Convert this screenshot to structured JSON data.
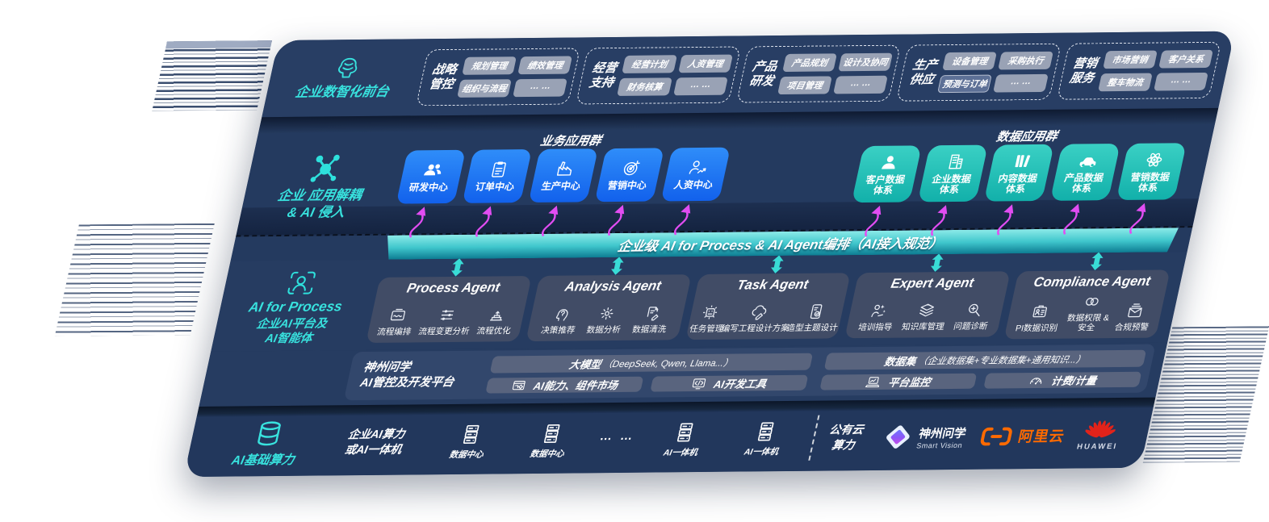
{
  "palette": {
    "page_bg": "#ffffff",
    "panel_navy": "#24395d",
    "teal_accent": "#38e2de",
    "blue_box": "#1e78f0",
    "teal_box": "#22c2b7",
    "agent_box": "#414c66",
    "chip_gray": "#99a2b5",
    "chip_dark": "#5d7096",
    "bar_teal_light": "#8ceae8",
    "bar_teal_dark": "#0d7c92",
    "magenta": "#e14df2",
    "alibaba_orange": "#ff6a00",
    "huawei_red": "#e2231a"
  },
  "front_layer": {
    "label": "企业数智化前台",
    "icon": "brain-icon",
    "groups": [
      {
        "title_lines": [
          "战略",
          "管控"
        ],
        "chips": [
          {
            "label": "规划管理"
          },
          {
            "label": "绩效管理"
          },
          {
            "label": "组织与流程"
          },
          {
            "label": "… …"
          }
        ]
      },
      {
        "title_lines": [
          "经营",
          "支持"
        ],
        "chips": [
          {
            "label": "经营计划"
          },
          {
            "label": "人资管理"
          },
          {
            "label": "财务核算"
          },
          {
            "label": "… …"
          }
        ]
      },
      {
        "title_lines": [
          "产品",
          "研发"
        ],
        "chips": [
          {
            "label": "产品规划"
          },
          {
            "label": "设计及协同"
          },
          {
            "label": "项目管理"
          },
          {
            "label": "… …"
          }
        ]
      },
      {
        "title_lines": [
          "生产",
          "供应"
        ],
        "chips": [
          {
            "label": "设备管理"
          },
          {
            "label": "采购执行"
          },
          {
            "label": "预测与订单",
            "variant": "dark"
          },
          {
            "label": "… …"
          }
        ]
      },
      {
        "title_lines": [
          "营销",
          "服务"
        ],
        "chips": [
          {
            "label": "市场营销"
          },
          {
            "label": "客户关系"
          },
          {
            "label": "整车物流"
          },
          {
            "label": "… …"
          }
        ]
      }
    ]
  },
  "app_layer": {
    "label_lines": [
      "企业 应用解耦",
      "& AI 侵入"
    ],
    "icon": "molecule-icon",
    "business_group": {
      "title": "业务应用群",
      "boxes": [
        {
          "label_lines": [
            "研发中心"
          ],
          "icon": "team-icon"
        },
        {
          "label_lines": [
            "订单中心"
          ],
          "icon": "clipboard-icon"
        },
        {
          "label_lines": [
            "生产中心"
          ],
          "icon": "factory-icon"
        },
        {
          "label_lines": [
            "营销中心"
          ],
          "icon": "target-icon"
        },
        {
          "label_lines": [
            "人资中心"
          ],
          "icon": "person-trend-icon"
        }
      ]
    },
    "data_group": {
      "title": "数据应用群",
      "boxes": [
        {
          "label_lines": [
            "客户数据",
            "体系"
          ],
          "icon": "person-icon"
        },
        {
          "label_lines": [
            "企业数据",
            "体系"
          ],
          "icon": "building-icon"
        },
        {
          "label_lines": [
            "内容数据",
            "体系"
          ],
          "icon": "books-icon"
        },
        {
          "label_lines": [
            "产品数据",
            "体系"
          ],
          "icon": "car-icon"
        },
        {
          "label_lines": [
            "营销数据",
            "体系"
          ],
          "icon": "atom-icon"
        }
      ]
    }
  },
  "orchestration": {
    "label": "企业级 AI for Process & AI Agent编排（AI接入规范）"
  },
  "ai_layer": {
    "icon": "person-scan-icon",
    "label_en": "AI for Process",
    "label_lines": [
      "企业AI平台及",
      "AI智能体"
    ],
    "agents": [
      {
        "title": "Process Agent",
        "items": [
          {
            "label_lines": [
              "流程编排"
            ],
            "icon": "flow-icon"
          },
          {
            "label_lines": [
              "流程变更分析"
            ],
            "icon": "sliders-icon"
          },
          {
            "label_lines": [
              "流程优化"
            ],
            "icon": "stack-up-icon"
          }
        ]
      },
      {
        "title": "Analysis Agent",
        "items": [
          {
            "label_lines": [
              "决策推荐"
            ],
            "icon": "head-idea-icon"
          },
          {
            "label_lines": [
              "数据分析"
            ],
            "icon": "atom-gear-icon"
          },
          {
            "label_lines": [
              "数据清洗"
            ],
            "icon": "doc-clean-icon"
          }
        ]
      },
      {
        "title": "Task Agent",
        "items": [
          {
            "label_lines": [
              "任务管理"
            ],
            "icon": "task-grid-icon"
          },
          {
            "label_lines": [
              "编写工程设计方案"
            ],
            "icon": "cloud-pen-icon"
          },
          {
            "label_lines": [
              "造型主题设计"
            ],
            "icon": "design-check-icon"
          }
        ]
      },
      {
        "title": "Expert Agent",
        "items": [
          {
            "label_lines": [
              "培训指导"
            ],
            "icon": "training-icon"
          },
          {
            "label_lines": [
              "知识库管理"
            ],
            "icon": "layers-icon"
          },
          {
            "label_lines": [
              "问题诊断"
            ],
            "icon": "diagnose-icon"
          }
        ]
      },
      {
        "title": "Compliance Agent",
        "items": [
          {
            "label_lines": [
              "PI数据识别"
            ],
            "icon": "id-card-icon"
          },
          {
            "label_lines": [
              "数据权限 &",
              "安全"
            ],
            "icon": "rings-icon"
          },
          {
            "label_lines": [
              "合规预警"
            ],
            "icon": "mail-alert-icon"
          }
        ]
      }
    ]
  },
  "platform": {
    "label_lines": [
      "神州问学",
      "AI管控及开发平台"
    ],
    "columns": [
      {
        "bar": {
          "title": "大模型",
          "sub": "（DeepSeek, Qwen, Llama...）"
        },
        "cells": [
          {
            "label": "AI能力、组件市场",
            "icon": "market-icon"
          },
          {
            "label": "AI开发工具",
            "icon": "devtools-icon"
          }
        ]
      },
      {
        "bar": {
          "title": "数据集",
          "sub": "（企业数据集+专业数据集+通用知识...）"
        },
        "cells": [
          {
            "label": "平台监控",
            "icon": "monitor-icon"
          },
          {
            "label": "计费/计量",
            "icon": "gauge-icon"
          }
        ]
      }
    ]
  },
  "compute_layer": {
    "label": "AI基础算力",
    "icon": "database-icon",
    "onprem_lines": [
      "企业AI算力",
      "或AI一体机"
    ],
    "nodes": [
      {
        "label": "数据中心",
        "icon": "server-icon"
      },
      {
        "label": "数据中心",
        "icon": "server-icon"
      },
      {
        "ellipsis": "… …"
      },
      {
        "label": "AI一体机",
        "icon": "server-icon"
      },
      {
        "label": "AI一体机",
        "icon": "server-icon"
      }
    ],
    "cloud_lines": [
      "公有云",
      "算力"
    ],
    "vendors": [
      {
        "icon": "smartvision-logo",
        "name": "神州问学",
        "sub": "Smart Vision"
      },
      {
        "icon": "alicloud-logo",
        "name": "阿里云"
      },
      {
        "icon": "huawei-logo",
        "name": "HUAWEI"
      }
    ]
  }
}
